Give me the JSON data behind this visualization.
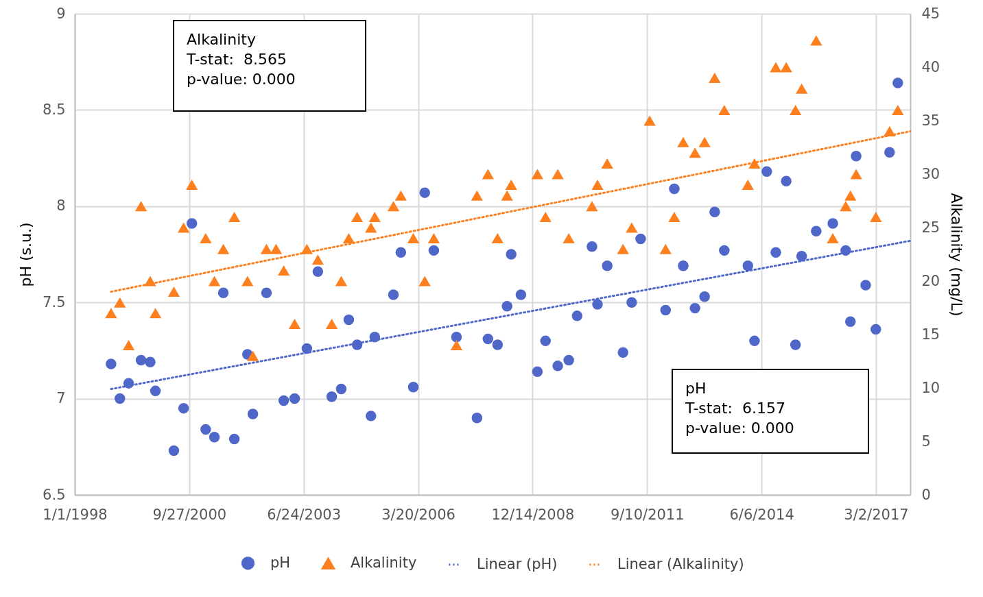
{
  "chart_data": {
    "type": "scatter",
    "ylabel": "pH (s.u.)",
    "y2label": "Alkalinity (mg/L)",
    "xlim": [
      "1998-01-01",
      "2017-12-27"
    ],
    "xticks": [
      {
        "value": "1998-01-01",
        "label": "1/1/1998"
      },
      {
        "value": "2000-09-27",
        "label": "9/27/2000"
      },
      {
        "value": "2003-06-24",
        "label": "6/24/2003"
      },
      {
        "value": "2006-03-20",
        "label": "3/20/2006"
      },
      {
        "value": "2008-12-14",
        "label": "12/14/2008"
      },
      {
        "value": "2011-09-10",
        "label": "9/10/2011"
      },
      {
        "value": "2014-06-06",
        "label": "6/6/2014"
      },
      {
        "value": "2017-03-02",
        "label": "3/2/2017"
      }
    ],
    "ylim": [
      6.5,
      9
    ],
    "yticks": [
      6.5,
      7,
      7.5,
      8,
      8.5,
      9
    ],
    "y2lim": [
      0,
      45
    ],
    "y2ticks": [
      0,
      5,
      10,
      15,
      20,
      25,
      30,
      35,
      40,
      45
    ],
    "grid": true,
    "legend": "bottom",
    "annotations": [
      "Alkalinity\nT-stat:  8.565\np-value: 0.000",
      "pH\nT-stat:  6.157\np-value: 0.000"
    ],
    "series": [
      {
        "name": "pH",
        "type": "scatter",
        "marker": "circle",
        "color": "#4f67c9",
        "x": [
          "1998-11-14",
          "1999-01-30",
          "1999-04-17",
          "1999-08-03",
          "1999-10-22",
          "1999-12-07",
          "2000-05-16",
          "2000-08-09",
          "2000-10-20",
          "2001-02-18",
          "2001-05-05",
          "2001-07-22",
          "2001-10-26",
          "2002-02-18",
          "2002-04-06",
          "2002-08-03",
          "2003-01-01",
          "2003-04-06",
          "2003-07-22",
          "2003-10-26",
          "2004-02-24",
          "2004-05-17",
          "2004-07-22",
          "2004-10-03",
          "2005-02-01",
          "2005-03-06",
          "2005-08-16",
          "2005-10-20",
          "2006-02-06",
          "2006-05-17",
          "2006-08-04",
          "2007-02-18",
          "2007-08-16",
          "2007-11-20",
          "2008-02-12",
          "2008-05-05",
          "2008-06-10",
          "2008-09-03",
          "2009-01-25",
          "2009-04-06",
          "2009-07-22",
          "2009-10-26",
          "2010-01-07",
          "2010-05-17",
          "2010-07-04",
          "2010-09-27",
          "2011-02-12",
          "2011-04-29",
          "2011-07-16",
          "2012-02-19",
          "2012-05-05",
          "2012-07-22",
          "2012-11-02",
          "2013-01-25",
          "2013-04-23",
          "2013-07-16",
          "2014-02-07",
          "2014-04-06",
          "2014-07-22",
          "2014-10-09",
          "2015-01-08",
          "2015-03-30",
          "2015-05-23",
          "2015-09-27",
          "2016-02-19",
          "2016-06-11",
          "2016-07-22",
          "2016-09-10",
          "2016-12-02",
          "2017-03-01",
          "2017-06-29",
          "2017-09-09"
        ],
        "values": [
          7.18,
          7.0,
          7.08,
          7.2,
          7.19,
          7.04,
          6.73,
          6.95,
          7.91,
          6.84,
          6.8,
          7.55,
          6.79,
          7.23,
          6.92,
          7.55,
          6.99,
          7.0,
          7.26,
          7.66,
          7.01,
          7.05,
          7.41,
          7.28,
          6.91,
          7.32,
          7.54,
          7.76,
          7.06,
          8.07,
          7.77,
          7.32,
          6.9,
          7.31,
          7.28,
          7.48,
          7.75,
          7.54,
          7.14,
          7.3,
          7.17,
          7.2,
          7.43,
          7.79,
          7.49,
          7.69,
          7.24,
          7.5,
          7.83,
          7.46,
          8.09,
          7.69,
          7.47,
          7.53,
          7.97,
          7.77,
          7.69,
          7.3,
          8.18,
          7.76,
          8.13,
          7.28,
          7.74,
          7.87,
          7.91,
          7.77,
          7.4,
          8.26,
          7.59,
          7.36,
          8.28,
          8.64
        ]
      },
      {
        "name": "Alkalinity",
        "type": "scatter",
        "marker": "triangle",
        "axis": "y2",
        "color": "#fd7f1e",
        "x": [
          "1998-11-14",
          "1999-01-30",
          "1999-04-17",
          "1999-08-03",
          "1999-10-22",
          "1999-12-07",
          "2000-05-16",
          "2000-08-09",
          "2000-10-20",
          "2001-02-18",
          "2001-05-05",
          "2001-07-22",
          "2001-10-26",
          "2002-02-18",
          "2002-04-06",
          "2002-08-03",
          "2002-10-26",
          "2003-01-01",
          "2003-04-06",
          "2003-07-22",
          "2003-10-26",
          "2004-02-24",
          "2004-05-17",
          "2004-07-22",
          "2004-10-03",
          "2005-02-01",
          "2005-03-06",
          "2005-08-16",
          "2005-10-20",
          "2006-02-06",
          "2006-05-17",
          "2006-08-04",
          "2007-02-18",
          "2007-08-16",
          "2007-11-20",
          "2008-02-12",
          "2008-05-05",
          "2008-06-10",
          "2009-01-25",
          "2009-04-06",
          "2009-07-22",
          "2009-10-26",
          "2010-05-17",
          "2010-07-04",
          "2010-09-27",
          "2011-02-12",
          "2011-04-29",
          "2011-10-03",
          "2012-02-19",
          "2012-05-05",
          "2012-07-22",
          "2012-11-02",
          "2013-01-25",
          "2013-04-23",
          "2013-07-16",
          "2014-02-07",
          "2014-04-06",
          "2014-10-09",
          "2015-01-08",
          "2015-03-30",
          "2015-05-23",
          "2015-09-27",
          "2016-02-19",
          "2016-06-11",
          "2016-07-22",
          "2016-09-10",
          "2017-03-01",
          "2017-06-29",
          "2017-09-09"
        ],
        "values": [
          17,
          18,
          14,
          27,
          20,
          17,
          19,
          25,
          29,
          24,
          20,
          23,
          26,
          20,
          13,
          23,
          23,
          21,
          16,
          23,
          22,
          16,
          20,
          24,
          26,
          25,
          26,
          27,
          28,
          24,
          20,
          24,
          14,
          28,
          30,
          24,
          28,
          29,
          30,
          26,
          30,
          24,
          27,
          29,
          31,
          23,
          25,
          35,
          23,
          26,
          33,
          32,
          33,
          39,
          36,
          29,
          31,
          40,
          40,
          36,
          38,
          42.5,
          24,
          27,
          28,
          30,
          26,
          34,
          36
        ]
      },
      {
        "name": "Linear (pH)",
        "type": "line",
        "line_style": "dotted",
        "marker": "none",
        "color": "#4f67c9",
        "x": [
          "1998-11-14",
          "2017-12-27"
        ],
        "values": [
          7.05,
          7.82
        ]
      },
      {
        "name": "Linear (Alkalinity)",
        "type": "line",
        "line_style": "dotted",
        "marker": "none",
        "axis": "y2",
        "color": "#fd7f1e",
        "x": [
          "1998-11-14",
          "2017-12-27"
        ],
        "values": [
          19,
          34
        ]
      }
    ]
  }
}
